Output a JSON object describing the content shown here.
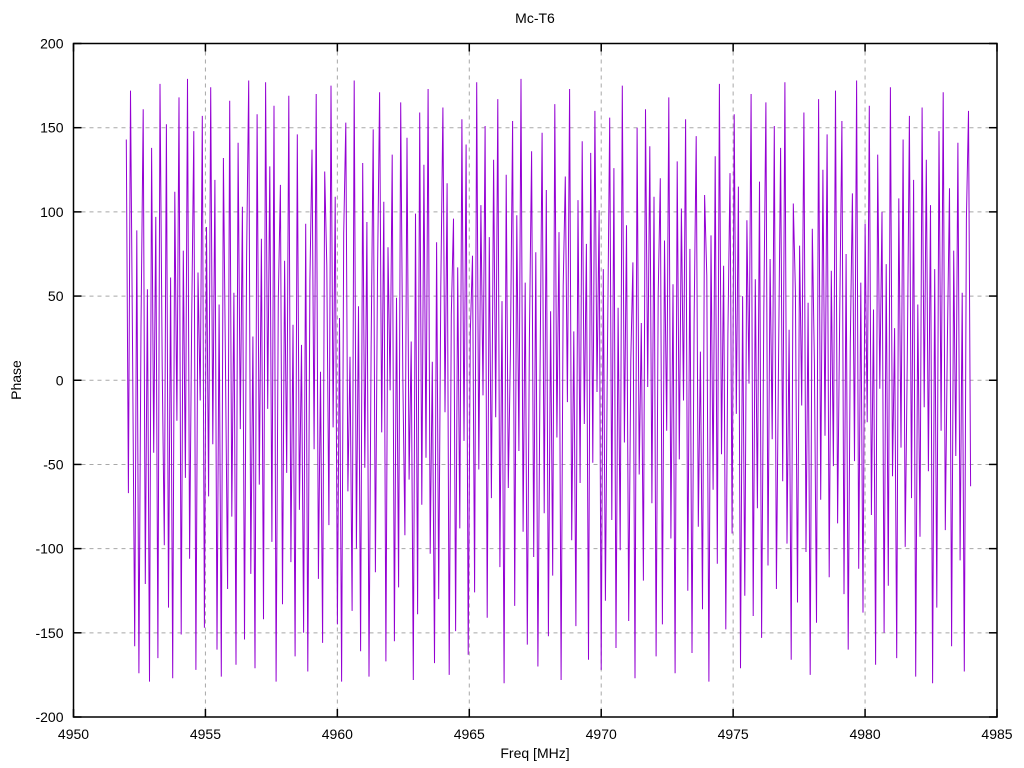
{
  "window": {
    "background": "#ffffff"
  },
  "chart_data": {
    "type": "line",
    "title": "Mc-T6",
    "xlabel": "Freq [MHz]",
    "ylabel": "Phase",
    "xlim": [
      4950,
      4985
    ],
    "ylim": [
      -200,
      200
    ],
    "x_ticks": [
      4950,
      4955,
      4960,
      4965,
      4970,
      4975,
      4980,
      4985
    ],
    "y_ticks": [
      -200,
      -150,
      -100,
      -50,
      0,
      50,
      100,
      150,
      200
    ],
    "grid": "dashed",
    "grid_color": "#a8a8a8",
    "axis_color": "#000000",
    "line_color": "#9400d3",
    "legend": "none",
    "description": "Wrapped interferometric phase vs frequency; noise-like values spanning -180 to 180 deg between 4952 and 4984 MHz",
    "series": [
      {
        "name": "Mc-T6",
        "x_start": 4952.0,
        "x_step": 0.08,
        "y_values": [
          143,
          -67,
          172,
          15,
          -158,
          89,
          -174,
          32,
          161,
          -121,
          54,
          -179,
          138,
          -43,
          97,
          -165,
          176,
          8,
          -98,
          152,
          -135,
          61,
          -177,
          112,
          -24,
          168,
          -151,
          77,
          -58,
          179,
          -106,
          36,
          148,
          -172,
          64,
          -12,
          157,
          -147,
          91,
          -69,
          174,
          -38,
          119,
          -160,
          45,
          -176,
          132,
          7,
          -124,
          166,
          -81,
          52,
          -169,
          141,
          -29,
          103,
          -154,
          73,
          178,
          -115,
          26,
          -171,
          158,
          -62,
          84,
          -142,
          177,
          -17,
          127,
          -96,
          163,
          -179,
          48,
          116,
          -133,
          71,
          -55,
          169,
          -108,
          33,
          -164,
          146,
          -77,
          21,
          -150,
          93,
          -173,
          59,
          137,
          -41,
          170,
          -118,
          5,
          -156,
          124,
          68,
          -86,
          175,
          -28,
          109,
          -145,
          37,
          -179,
          87,
          153,
          -66,
          14,
          -137,
          178,
          -100,
          44,
          -161,
          129,
          -52,
          94,
          -176,
          18,
          149,
          -114,
          63,
          171,
          -31,
          106,
          -167,
          79,
          -6,
          134,
          -155,
          49,
          -123,
          165,
          3,
          -92,
          144,
          -59,
          23,
          -178,
          99,
          -139,
          159,
          -74,
          128,
          -46,
          173,
          -103,
          11,
          -168,
          82,
          -130,
          55,
          162,
          -19,
          117,
          -175,
          39,
          96,
          -149,
          67,
          -88,
          155,
          -36,
          140,
          -163,
          28,
          74,
          -126,
          177,
          -53,
          104,
          -9,
          151,
          -141,
          85,
          -70,
          131,
          -22,
          167,
          -111,
          47,
          -180,
          122,
          -64,
          16,
          154,
          -134,
          98,
          -42,
          179,
          -90,
          58,
          -157,
          25,
          136,
          -105,
          76,
          -170,
          2,
          147,
          -79,
          113,
          -152,
          41,
          -116,
          164,
          -34,
          88,
          -178,
          56,
          121,
          -13,
          173,
          -95,
          29,
          -146,
          107,
          -61,
          142,
          -26,
          81,
          -166,
          135,
          -49,
          160,
          -7,
          101,
          -172,
          66,
          -131,
          20,
          156,
          -83,
          126,
          -159,
          43,
          -101,
          175,
          -37,
          92,
          -143,
          12,
          70,
          -177,
          150,
          -56,
          34,
          -119,
          161,
          -4,
          139,
          -73,
          109,
          -164,
          51,
          120,
          -145,
          83,
          -30,
          168,
          -94,
          57,
          -174,
          130,
          -47,
          102,
          -12,
          155,
          -125,
          78,
          -162,
          35,
          145,
          -87,
          17,
          -136,
          110,
          62,
          -179,
          86,
          -65,
          133,
          -109,
          176,
          -44,
          68,
          -148,
          27,
          123,
          -91,
          158,
          -20,
          115,
          -171,
          50,
          -128,
          95,
          -2,
          170,
          -140,
          60,
          -76,
          118,
          -153,
          40,
          165,
          -110,
          72,
          -35,
          151,
          -124,
          9,
          138,
          -60,
          177,
          -97,
          30,
          -166,
          105,
          53,
          -132,
          80,
          -15,
          159,
          -102,
          46,
          -175,
          90,
          10,
          -144,
          167,
          -71,
          125,
          -33,
          146,
          -117,
          65,
          -51,
          172,
          -85,
          38,
          154,
          -127,
          75,
          -160,
          22,
          111,
          -48,
          178,
          -112,
          58,
          -138,
          93,
          -25,
          163,
          -80,
          42,
          -169,
          134,
          -5,
          100,
          -150,
          69,
          -122,
          174,
          -57,
          31,
          -165,
          108,
          -40,
          143,
          -99,
          13,
          157,
          -70,
          119,
          -176,
          45,
          -93,
          162,
          -16,
          131,
          -54,
          104,
          -180,
          66,
          -135,
          148,
          -30,
          171,
          -89,
          24,
          114,
          -158,
          77,
          -45,
          141,
          -107,
          52,
          -173,
          96,
          160,
          -63
        ]
      }
    ]
  }
}
